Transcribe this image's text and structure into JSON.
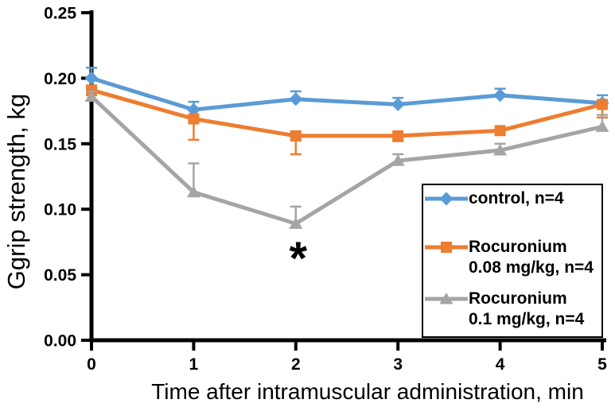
{
  "chart_data": {
    "type": "line",
    "title": "",
    "xlabel": "Time after intramuscular administration, min",
    "ylabel": "Ggrip strength, kg",
    "xlim": [
      0,
      5
    ],
    "ylim": [
      0,
      0.25
    ],
    "grid": false,
    "legend_position": "inside-bottom-right",
    "x": [
      0,
      1,
      2,
      3,
      4,
      5
    ],
    "xtick_labels": [
      "0",
      "1",
      "2",
      "3",
      "4",
      "5"
    ],
    "yticks": [
      0,
      0.05,
      0.1,
      0.15,
      0.2,
      0.25
    ],
    "ytick_labels": [
      "0.00",
      "0.05",
      "0.10",
      "0.15",
      "0.20",
      "0.25"
    ],
    "series": [
      {
        "name": "control, n=4",
        "color": "#5b9bd5",
        "marker": "diamond",
        "values": [
          0.2,
          0.176,
          0.184,
          0.18,
          0.187,
          0.181
        ],
        "errors": [
          0.008,
          0.006,
          0.006,
          0.005,
          0.005,
          0.006
        ],
        "error_direction": "up"
      },
      {
        "name": "Rocuronium 0.08 mg/kg, n=4",
        "color": "#ed7d31",
        "marker": "square",
        "values": [
          0.191,
          0.169,
          0.156,
          0.156,
          0.16,
          0.18
        ],
        "errors": [
          0.004,
          0.016,
          0.014,
          0.004,
          0.003,
          0.01
        ],
        "error_direction": "down"
      },
      {
        "name": "Rocuronium 0.1 mg/kg, n=4",
        "color": "#a5a5a5",
        "marker": "triangle",
        "values": [
          0.186,
          0.113,
          0.089,
          0.137,
          0.145,
          0.163
        ],
        "errors": [
          0.004,
          0.022,
          0.013,
          0.005,
          0.005,
          0.009
        ],
        "error_direction": "up"
      }
    ],
    "annotations": [
      {
        "text": "*",
        "x": 2,
        "y": 0.068
      }
    ],
    "axis_color": "#000000",
    "text_color": "#000000"
  },
  "legend": {
    "items": [
      {
        "line1": "control, n=4",
        "line2": ""
      },
      {
        "line1": "Rocuronium",
        "line2": "0.08 mg/kg, n=4"
      },
      {
        "line1": "Rocuronium",
        "line2": "0.1 mg/kg, n=4"
      }
    ]
  }
}
